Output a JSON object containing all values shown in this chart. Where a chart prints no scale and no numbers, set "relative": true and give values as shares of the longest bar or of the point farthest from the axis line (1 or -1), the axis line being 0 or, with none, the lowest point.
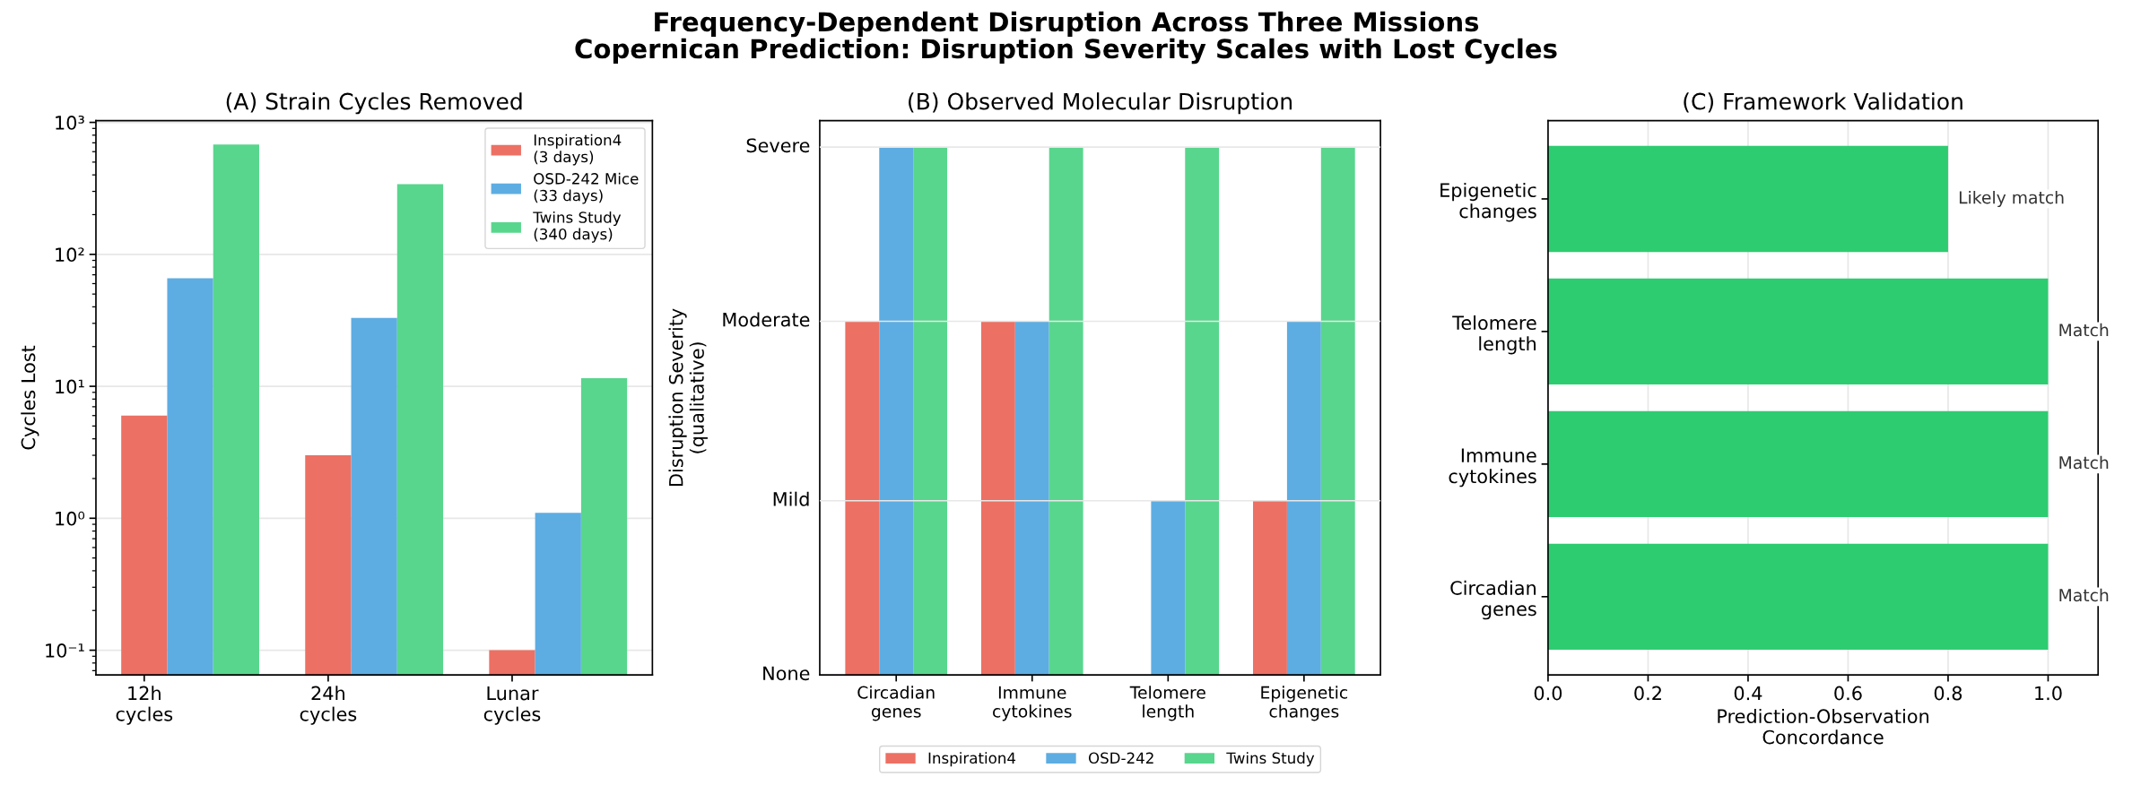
{
  "chart_data": [
    {
      "type": "other",
      "title": "Frequency-Dependent Disruption Across Three Missions",
      "subtitle": "Copernican Prediction: Disruption Severity Scales with Lost Cycles"
    },
    {
      "type": "bar",
      "title": "(A) Strain Cycles Removed",
      "ylabel": "Cycles Lost",
      "categories": [
        "12h\ncycles",
        "24h\ncycles",
        "Lunar\ncycles"
      ],
      "series": [
        {
          "name": "Inspiration4\n(3 days)",
          "color": "#ec7063",
          "values": [
            6,
            3,
            0.1
          ]
        },
        {
          "name": "OSD-242 Mice\n(33 days)",
          "color": "#5dade2",
          "values": [
            66,
            33,
            1.1
          ]
        },
        {
          "name": "Twins Study\n(340 days)",
          "color": "#58d68d",
          "values": [
            680,
            340,
            11.5
          ]
        }
      ],
      "log": "y",
      "ylim": [
        0.065,
        1030
      ],
      "yticks": [
        {
          "value": 0.1,
          "label": "10⁻¹"
        },
        {
          "value": 1,
          "label": "10⁰"
        },
        {
          "value": 10,
          "label": "10¹"
        },
        {
          "value": 100,
          "label": "10²"
        },
        {
          "value": 1000,
          "label": "10³"
        }
      ],
      "grid": "y",
      "legend": "top right"
    },
    {
      "type": "bar",
      "title": "(B) Observed Molecular Disruption",
      "ylabel": "Disruption Severity\n(qualitative)",
      "categories": [
        "Circadian\ngenes",
        "Immune\ncytokines",
        "Telomere\nlength",
        "Epigenetic\nchanges"
      ],
      "series": [
        {
          "name": "Inspiration4",
          "color": "#ec7063",
          "values": [
            0.67,
            0.67,
            0,
            0.33
          ]
        },
        {
          "name": "OSD-242",
          "color": "#5dade2",
          "values": [
            1,
            0.67,
            0.33,
            0.67
          ]
        },
        {
          "name": "Twins Study",
          "color": "#58d68d",
          "values": [
            1,
            1,
            1,
            1
          ]
        }
      ],
      "relative": true,
      "ref_lines": [
        {
          "axis": "y",
          "value": 0.33,
          "label": "Mild",
          "color": "#e7e7e7"
        },
        {
          "axis": "y",
          "value": 0.67,
          "label": "Moderate",
          "color": "#e7e7e7"
        },
        {
          "axis": "y",
          "value": 1,
          "label": "Severe",
          "color": "#e7e7e7"
        }
      ],
      "annotations": [
        "None"
      ],
      "legend": "bottom"
    },
    {
      "type": "bar",
      "orientation": "horizontal",
      "title": "(C) Framework Validation",
      "xlabel": "Prediction-Observation\nConcordance",
      "categories": [
        "Epigenetic\nchanges",
        "Telomere\nlength",
        "Immune\ncytokines",
        "Circadian\ngenes"
      ],
      "values": [
        0.8,
        1,
        1,
        1
      ],
      "color": "#2ecc71",
      "value_labels": [
        "Likely match",
        "Match",
        "Match",
        "Match"
      ],
      "xlim": [
        0,
        1.1
      ],
      "xticks": [
        {
          "value": 0,
          "label": "0.0"
        },
        {
          "value": 0.2,
          "label": "0.2"
        },
        {
          "value": 0.4,
          "label": "0.4"
        },
        {
          "value": 0.6,
          "label": "0.6"
        },
        {
          "value": 0.8,
          "label": "0.8"
        },
        {
          "value": 1,
          "label": "1.0"
        }
      ],
      "grid": "x"
    }
  ]
}
